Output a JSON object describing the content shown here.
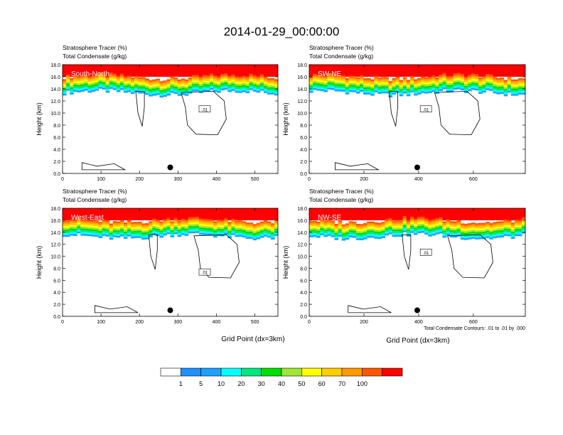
{
  "title": "2014-01-29_00:00:00",
  "footnote": "Total Condensate Contours: .01 to .01 by .000",
  "xlabel": "Grid Point (dx=3km)",
  "ylabel": "Height (km)",
  "colorbar": {
    "labels": [
      "1",
      "5",
      "10",
      "20",
      "30",
      "40",
      "50",
      "60",
      "70",
      "100"
    ],
    "colors": [
      "#ffffff",
      "#1e90ff",
      "#1ea0ff",
      "#00ffff",
      "#00e87f",
      "#00e000",
      "#a0e632",
      "#ffff00",
      "#ffcc00",
      "#ff9900",
      "#ff5500",
      "#ff0000"
    ]
  },
  "chart_data": [
    {
      "type": "heatmap",
      "panel_label": "South-North",
      "header_line1": "Stratosphere Tracer   (%)",
      "header_line2": "Total Condensate   (g/kg)",
      "xlim": [
        0,
        560
      ],
      "ylim": [
        0,
        18
      ],
      "xticks": [
        "0",
        "100",
        "200",
        "300",
        "400",
        "500"
      ],
      "xtick_values": [
        0,
        100,
        200,
        300,
        400,
        500
      ],
      "yticks": [
        "0.0",
        "2.0",
        "4.0",
        "6.0",
        "8.0",
        "10.0",
        "12.0",
        "14.0",
        "16.0",
        "18.0"
      ],
      "contour_label": ".01",
      "marker_x": 280,
      "marker_y": 1.0
    },
    {
      "type": "heatmap",
      "panel_label": "SW-NE",
      "header_line1": "Stratosphere Tracer   (%)",
      "header_line2": "Total Condensate   (g/kg)",
      "xlim": [
        0,
        790
      ],
      "ylim": [
        0,
        18
      ],
      "xticks": [
        "0",
        "200",
        "400",
        "600"
      ],
      "xtick_values": [
        0,
        200,
        400,
        600
      ],
      "yticks": [
        "0.0",
        "2.0",
        "4.0",
        "6.0",
        "8.0",
        "10.0",
        "12.0",
        "14.0",
        "16.0",
        "18.0"
      ],
      "contour_label": ".01",
      "marker_x": 395,
      "marker_y": 1.0
    },
    {
      "type": "heatmap",
      "panel_label": "West-East",
      "header_line1": "Stratosphere Tracer   (%)",
      "header_line2": "Total Condensate   (g/kg)",
      "xlim": [
        0,
        560
      ],
      "ylim": [
        0,
        18
      ],
      "xticks": [
        "0",
        "100",
        "200",
        "300",
        "400",
        "500"
      ],
      "xtick_values": [
        0,
        100,
        200,
        300,
        400,
        500
      ],
      "yticks": [
        "0.0",
        "2.0",
        "4.0",
        "6.0",
        "8.0",
        "10.0",
        "12.0",
        "14.0",
        "16.0",
        "18.0"
      ],
      "contour_label": ".01",
      "marker_x": 280,
      "marker_y": 1.0
    },
    {
      "type": "heatmap",
      "panel_label": "NW-SE",
      "header_line1": "Stratosphere Tracer   (%)",
      "header_line2": "Total Condensate   (g/kg)",
      "xlim": [
        0,
        790
      ],
      "ylim": [
        0,
        18
      ],
      "xticks": [
        "0",
        "200",
        "400",
        "600"
      ],
      "xtick_values": [
        0,
        200,
        400,
        600
      ],
      "yticks": [
        "0.0",
        "2.0",
        "4.0",
        "6.0",
        "8.0",
        "10.0",
        "12.0",
        "14.0",
        "16.0",
        "18.0"
      ],
      "contour_label": ".01",
      "marker_x": 395,
      "marker_y": 1.0
    }
  ]
}
